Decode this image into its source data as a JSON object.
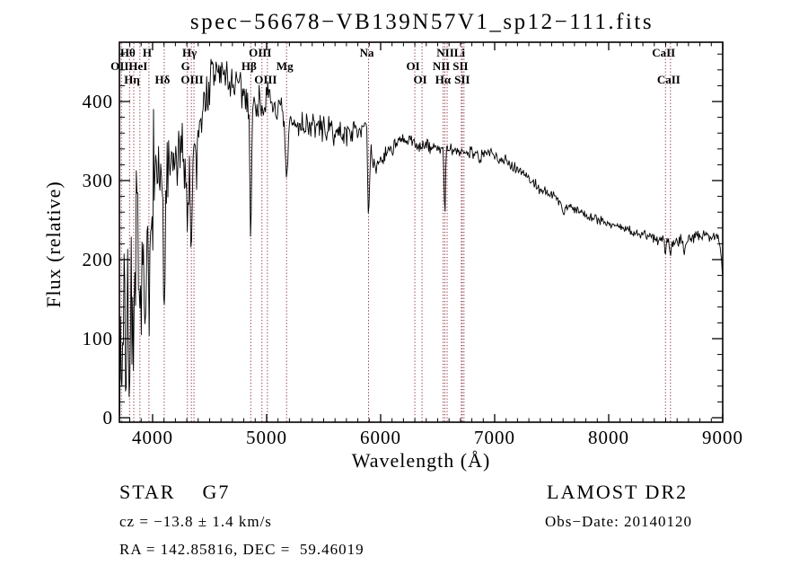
{
  "title": "spec−56678−VB139N57V1_sp12−111.fits",
  "chart_data": {
    "type": "line",
    "title": "spec−56678−VB139N57V1_sp12−111.fits",
    "xlabel": "Wavelength (Å)",
    "ylabel": "Flux (relative)",
    "xlim": [
      3709,
      9000
    ],
    "ylim": [
      -6,
      475
    ],
    "x_ticks": [
      4000,
      5000,
      6000,
      7000,
      8000,
      9000
    ],
    "y_ticks": [
      0,
      100,
      200,
      300,
      400
    ],
    "x_minor_step": 100,
    "y_minor_step": 20,
    "grid": false,
    "legend": false,
    "series_color": "#000000",
    "marker_color": "#8B3040",
    "noise_seed": 7,
    "continuum": [
      [
        3709,
        60
      ],
      [
        3722,
        130
      ],
      [
        3745,
        185
      ],
      [
        3780,
        205
      ],
      [
        3820,
        215
      ],
      [
        3860,
        220
      ],
      [
        3905,
        245
      ],
      [
        3950,
        275
      ],
      [
        4000,
        298
      ],
      [
        4060,
        308
      ],
      [
        4150,
        315
      ],
      [
        4250,
        328
      ],
      [
        4350,
        348
      ],
      [
        4430,
        385
      ],
      [
        4500,
        420
      ],
      [
        4560,
        440
      ],
      [
        4650,
        430
      ],
      [
        4750,
        416
      ],
      [
        4820,
        405
      ],
      [
        4900,
        396
      ],
      [
        5000,
        401
      ],
      [
        5080,
        393
      ],
      [
        5160,
        378
      ],
      [
        5250,
        370
      ],
      [
        5350,
        371
      ],
      [
        5450,
        368
      ],
      [
        5550,
        363
      ],
      [
        5650,
        359
      ],
      [
        5750,
        362
      ],
      [
        5840,
        370
      ],
      [
        5880,
        373
      ],
      [
        5940,
        315
      ],
      [
        6000,
        326
      ],
      [
        6080,
        340
      ],
      [
        6160,
        348
      ],
      [
        6250,
        350
      ],
      [
        6350,
        344
      ],
      [
        6450,
        342
      ],
      [
        6550,
        341
      ],
      [
        6650,
        336
      ],
      [
        6780,
        337
      ],
      [
        6900,
        335
      ],
      [
        7000,
        332
      ],
      [
        7100,
        325
      ],
      [
        7250,
        310
      ],
      [
        7400,
        289
      ],
      [
        7550,
        277
      ],
      [
        7700,
        264
      ],
      [
        7850,
        254
      ],
      [
        8000,
        246
      ],
      [
        8150,
        238
      ],
      [
        8300,
        231
      ],
      [
        8450,
        226
      ],
      [
        8600,
        224
      ],
      [
        8750,
        228
      ],
      [
        8900,
        231
      ],
      [
        8960,
        227
      ],
      [
        8985,
        208
      ],
      [
        9000,
        182
      ]
    ],
    "noise_amplitude": [
      [
        3709,
        125
      ],
      [
        3800,
        130
      ],
      [
        3880,
        115
      ],
      [
        3940,
        90
      ],
      [
        3990,
        65
      ],
      [
        4060,
        55
      ],
      [
        4180,
        50
      ],
      [
        4300,
        48
      ],
      [
        4450,
        44
      ],
      [
        4600,
        42
      ],
      [
        4750,
        34
      ],
      [
        4900,
        29
      ],
      [
        5050,
        26
      ],
      [
        5200,
        23
      ],
      [
        5400,
        21
      ],
      [
        5600,
        19
      ],
      [
        5800,
        17
      ],
      [
        5950,
        14
      ],
      [
        6100,
        13
      ],
      [
        6300,
        12
      ],
      [
        6500,
        11
      ],
      [
        6700,
        10
      ],
      [
        6900,
        10
      ],
      [
        7200,
        9
      ],
      [
        7600,
        8
      ],
      [
        8000,
        8
      ],
      [
        8300,
        9
      ],
      [
        8550,
        10
      ],
      [
        8800,
        9
      ],
      [
        9000,
        8
      ]
    ],
    "absorption_features": [
      {
        "wavelength": 3734,
        "depth": 120,
        "sigma": 7
      },
      {
        "wavelength": 3770,
        "depth": 140,
        "sigma": 8
      },
      {
        "wavelength": 3798,
        "depth": 150,
        "sigma": 8
      },
      {
        "wavelength": 3835,
        "depth": 160,
        "sigma": 9
      },
      {
        "wavelength": 3889,
        "depth": 140,
        "sigma": 9
      },
      {
        "wavelength": 3933,
        "depth": 185,
        "sigma": 9
      },
      {
        "wavelength": 3970,
        "depth": 160,
        "sigma": 9
      },
      {
        "wavelength": 4102,
        "depth": 195,
        "sigma": 8
      },
      {
        "wavelength": 4305,
        "depth": 80,
        "sigma": 11
      },
      {
        "wavelength": 4340,
        "depth": 125,
        "sigma": 8
      },
      {
        "wavelength": 4383,
        "depth": 55,
        "sigma": 7
      },
      {
        "wavelength": 4861,
        "depth": 182,
        "sigma": 7
      },
      {
        "wavelength": 5175,
        "depth": 82,
        "sigma": 11
      },
      {
        "wavelength": 5894,
        "depth": 112,
        "sigma": 8
      },
      {
        "wavelength": 6563,
        "depth": 83,
        "sigma": 6
      },
      {
        "wavelength": 6870,
        "depth": 14,
        "sigma": 10
      },
      {
        "wavelength": 7605,
        "depth": 16,
        "sigma": 12
      },
      {
        "wavelength": 8498,
        "depth": 16,
        "sigma": 6
      },
      {
        "wavelength": 8542,
        "depth": 20,
        "sigma": 6
      },
      {
        "wavelength": 8662,
        "depth": 16,
        "sigma": 6
      }
    ],
    "spectral_line_markers": [
      {
        "wavelength": 3727,
        "label": "OII",
        "row": 2
      },
      {
        "wavelength": 3798,
        "label": "Hθ",
        "row": 1
      },
      {
        "wavelength": 3835,
        "label": "Hη",
        "row": 3
      },
      {
        "wavelength": 3889,
        "label": "HeI",
        "row": 2
      },
      {
        "wavelength": 3968,
        "label": "H",
        "row": 1
      },
      {
        "wavelength": 4102,
        "label": "Hδ",
        "row": 3
      },
      {
        "wavelength": 4305,
        "label": "G",
        "row": 2
      },
      {
        "wavelength": 4340,
        "label": "Hγ",
        "row": 1
      },
      {
        "wavelength": 4363,
        "label": "OIII",
        "row": 3
      },
      {
        "wavelength": 4861,
        "label": "Hβ",
        "row": 2
      },
      {
        "wavelength": 4959,
        "label": "OIII",
        "row": 1
      },
      {
        "wavelength": 5007,
        "label": "OIII",
        "row": 3
      },
      {
        "wavelength": 5175,
        "label": "Mg",
        "row": 2
      },
      {
        "wavelength": 5894,
        "label": "Na",
        "row": 1
      },
      {
        "wavelength": 6300,
        "label": "OI",
        "row": 2
      },
      {
        "wavelength": 6363,
        "label": "OI",
        "row": 3
      },
      {
        "wavelength": 6548,
        "label": "NII",
        "row": 2
      },
      {
        "wavelength": 6563,
        "label": "Hα",
        "row": 3
      },
      {
        "wavelength": 6583,
        "label": "NII",
        "row": 1
      },
      {
        "wavelength": 6708,
        "label": "Li",
        "row": 1
      },
      {
        "wavelength": 6716,
        "label": "SII",
        "row": 2
      },
      {
        "wavelength": 6731,
        "label": "SII",
        "row": 3
      },
      {
        "wavelength": 8498,
        "label": "CaII",
        "row": 1
      },
      {
        "wavelength": 8542,
        "label": "CaII",
        "row": 3
      }
    ]
  },
  "annotations": {
    "class_label": "STAR    G7",
    "survey": "LAMOST DR2",
    "cz": "cz = −13.8 ± 1.4 km/s",
    "obs_date": "Obs−Date: 20140120",
    "ra_dec": "RA = 142.85816, DEC =  59.46019"
  }
}
